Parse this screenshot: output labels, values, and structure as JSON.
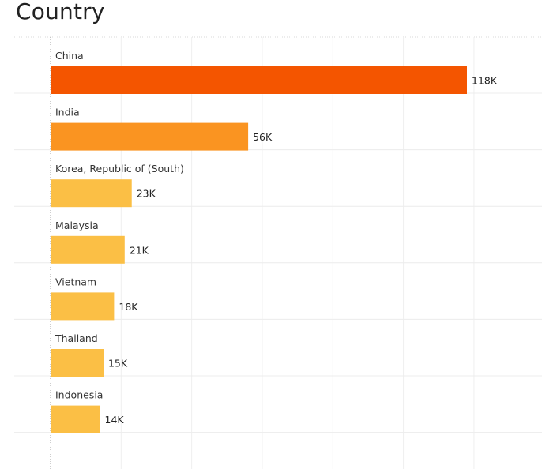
{
  "title": "Country",
  "chart_data": {
    "type": "bar",
    "orientation": "horizontal",
    "categories": [
      "China",
      "India",
      "Korea, Republic of (South)",
      "Malaysia",
      "Vietnam",
      "Thailand",
      "Indonesia"
    ],
    "values": [
      118,
      56,
      23,
      21,
      18,
      15,
      14
    ],
    "value_labels": [
      "118K",
      "56K",
      "23K",
      "21K",
      "18K",
      "15K",
      "14K"
    ],
    "value_unit": "K",
    "xlim": [
      0,
      140
    ],
    "grid": true,
    "colors": [
      "#f45500",
      "#fa9421",
      "#fbbf45",
      "#fbbf45",
      "#fbbf45",
      "#fbbf45",
      "#fbbf45"
    ]
  }
}
